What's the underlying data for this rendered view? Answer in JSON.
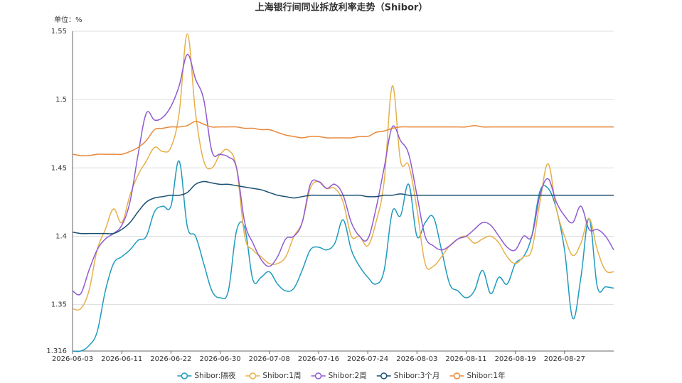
{
  "chart_data": {
    "type": "line",
    "title": "上海银行间同业拆放利率走势（Shibor）",
    "unit_label": "单位：%",
    "categories": [
      "2026-06-03",
      null,
      null,
      null,
      null,
      null,
      "2026-06-11",
      null,
      null,
      null,
      null,
      null,
      "2026-06-22",
      null,
      null,
      null,
      null,
      null,
      "2026-06-30",
      null,
      null,
      null,
      null,
      null,
      "2026-07-08",
      null,
      null,
      null,
      null,
      null,
      "2026-07-16",
      null,
      null,
      null,
      null,
      null,
      "2026-07-24",
      null,
      null,
      null,
      null,
      null,
      "2026-08-03",
      null,
      null,
      null,
      null,
      null,
      "2026-08-11",
      null,
      null,
      null,
      null,
      null,
      "2026-08-19",
      null,
      null,
      null,
      null,
      null,
      "2026-08-27",
      null,
      null,
      null,
      null,
      null,
      null
    ],
    "ylim": [
      1.316,
      1.55
    ],
    "yticks": [
      1.316,
      1.35,
      1.4,
      1.45,
      1.5,
      1.55
    ],
    "grid": true,
    "legend": "bottom",
    "series": [
      {
        "name": "Shibor:隔夜",
        "color": "#1e9bbd",
        "values": [
          1.316,
          1.316,
          1.32,
          1.33,
          1.36,
          1.38,
          1.385,
          1.39,
          1.397,
          1.4,
          1.418,
          1.422,
          1.422,
          1.455,
          1.407,
          1.4,
          1.38,
          1.36,
          1.355,
          1.36,
          1.404,
          1.406,
          1.368,
          1.37,
          1.374,
          1.365,
          1.36,
          1.362,
          1.375,
          1.39,
          1.392,
          1.39,
          1.395,
          1.412,
          1.39,
          1.378,
          1.37,
          1.365,
          1.375,
          1.418,
          1.415,
          1.438,
          1.4,
          1.41,
          1.414,
          1.39,
          1.365,
          1.36,
          1.355,
          1.36,
          1.375,
          1.358,
          1.37,
          1.365,
          1.38,
          1.385,
          1.4,
          1.433,
          1.435,
          1.42,
          1.39,
          1.34,
          1.37,
          1.413,
          1.363,
          1.363,
          1.362
        ]
      },
      {
        "name": "Shibor:1周",
        "color": "#e6b04a",
        "values": [
          1.347,
          1.347,
          1.36,
          1.39,
          1.405,
          1.42,
          1.41,
          1.43,
          1.445,
          1.455,
          1.465,
          1.462,
          1.465,
          1.49,
          1.548,
          1.49,
          1.455,
          1.45,
          1.46,
          1.463,
          1.45,
          1.4,
          1.39,
          1.385,
          1.38,
          1.38,
          1.385,
          1.4,
          1.41,
          1.435,
          1.44,
          1.435,
          1.435,
          1.425,
          1.4,
          1.4,
          1.393,
          1.41,
          1.44,
          1.51,
          1.455,
          1.452,
          1.42,
          1.38,
          1.378,
          1.385,
          1.393,
          1.398,
          1.4,
          1.395,
          1.398,
          1.4,
          1.395,
          1.385,
          1.38,
          1.385,
          1.39,
          1.425,
          1.453,
          1.42,
          1.4,
          1.386,
          1.395,
          1.413,
          1.39,
          1.375,
          1.374
        ]
      },
      {
        "name": "Shibor:2周",
        "color": "#8e5bd0",
        "values": [
          1.36,
          1.358,
          1.375,
          1.39,
          1.398,
          1.402,
          1.408,
          1.425,
          1.46,
          1.49,
          1.485,
          1.487,
          1.495,
          1.51,
          1.533,
          1.515,
          1.5,
          1.462,
          1.46,
          1.458,
          1.45,
          1.41,
          1.395,
          1.383,
          1.378,
          1.385,
          1.398,
          1.4,
          1.41,
          1.438,
          1.44,
          1.435,
          1.438,
          1.43,
          1.41,
          1.4,
          1.398,
          1.42,
          1.45,
          1.48,
          1.47,
          1.46,
          1.43,
          1.4,
          1.393,
          1.39,
          1.393,
          1.398,
          1.4,
          1.405,
          1.41,
          1.408,
          1.4,
          1.392,
          1.39,
          1.4,
          1.4,
          1.43,
          1.442,
          1.425,
          1.415,
          1.41,
          1.422,
          1.405,
          1.405,
          1.4,
          1.39
        ]
      },
      {
        "name": "Shibor:3个月",
        "color": "#1b4f72",
        "values": [
          1.403,
          1.402,
          1.402,
          1.402,
          1.402,
          1.402,
          1.405,
          1.41,
          1.418,
          1.425,
          1.428,
          1.429,
          1.43,
          1.43,
          1.432,
          1.438,
          1.44,
          1.439,
          1.438,
          1.438,
          1.437,
          1.436,
          1.435,
          1.434,
          1.432,
          1.43,
          1.429,
          1.428,
          1.429,
          1.43,
          1.43,
          1.43,
          1.43,
          1.43,
          1.43,
          1.43,
          1.429,
          1.429,
          1.43,
          1.43,
          1.431,
          1.43,
          1.43,
          1.43,
          1.43,
          1.43,
          1.43,
          1.43,
          1.43,
          1.43,
          1.43,
          1.43,
          1.43,
          1.43,
          1.43,
          1.43,
          1.43,
          1.43,
          1.43,
          1.43,
          1.43,
          1.43,
          1.43,
          1.43,
          1.43,
          1.43,
          1.43
        ]
      },
      {
        "name": "Shibor:1年",
        "color": "#e8883a",
        "values": [
          1.46,
          1.459,
          1.459,
          1.46,
          1.46,
          1.46,
          1.46,
          1.462,
          1.465,
          1.47,
          1.478,
          1.479,
          1.48,
          1.48,
          1.481,
          1.484,
          1.482,
          1.48,
          1.48,
          1.48,
          1.48,
          1.479,
          1.479,
          1.478,
          1.478,
          1.476,
          1.474,
          1.473,
          1.472,
          1.473,
          1.473,
          1.472,
          1.472,
          1.472,
          1.472,
          1.473,
          1.473,
          1.476,
          1.477,
          1.479,
          1.48,
          1.48,
          1.48,
          1.48,
          1.48,
          1.48,
          1.48,
          1.48,
          1.48,
          1.481,
          1.48,
          1.48,
          1.48,
          1.48,
          1.48,
          1.48,
          1.48,
          1.48,
          1.48,
          1.48,
          1.48,
          1.48,
          1.48,
          1.48,
          1.48,
          1.48,
          1.48
        ]
      }
    ]
  }
}
